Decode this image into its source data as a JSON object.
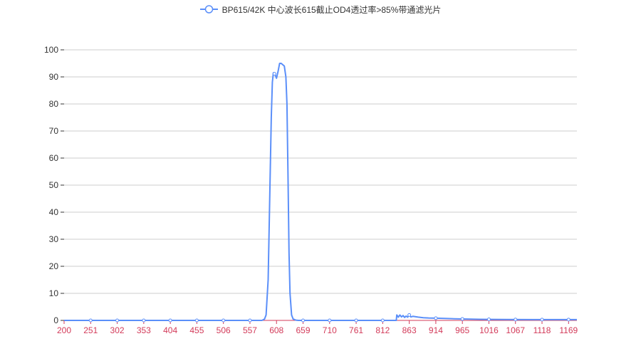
{
  "colors": {
    "series": "#5b8ff9",
    "grid": "#cccccc",
    "axis_x": "#d33b5a",
    "text": "#333333"
  },
  "chart_data": {
    "type": "line",
    "legend_position": "top-center",
    "grid": true,
    "series": [
      {
        "name": "BP615/42K 中心波长615截止OD4透过率>85%带通滤光片",
        "x": [
          200,
          400,
          560,
          580,
          585,
          588,
          592,
          595,
          598,
          600,
          602,
          605,
          608,
          611,
          614,
          617,
          620,
          623,
          626,
          628,
          630,
          632,
          634,
          637,
          640,
          645,
          650,
          700,
          800,
          838,
          839,
          842,
          845,
          848,
          851,
          854,
          857,
          860,
          863,
          866,
          870,
          880,
          890,
          900,
          920,
          950,
          1000,
          1050,
          1100,
          1150,
          1185
        ],
        "values": [
          0,
          0,
          0,
          0,
          0.5,
          2,
          15,
          45,
          75,
          88,
          91.5,
          91,
          89.5,
          92,
          95,
          95,
          94.5,
          94,
          90,
          80,
          55,
          25,
          10,
          2,
          0.5,
          0.1,
          0,
          0,
          0,
          0,
          2,
          1.2,
          2,
          1.3,
          1.8,
          1.1,
          1.6,
          1.2,
          2,
          1.3,
          1.5,
          1.2,
          1.0,
          0.9,
          0.8,
          0.6,
          0.4,
          0.35,
          0.3,
          0.3,
          0.3
        ]
      }
    ],
    "xlim": [
      200,
      1185
    ],
    "x_ticks": [
      200,
      251,
      302,
      353,
      404,
      455,
      506,
      557,
      608,
      659,
      710,
      761,
      812,
      863,
      914,
      965,
      1016,
      1067,
      1118,
      1169
    ],
    "ylim": [
      0,
      100
    ],
    "y_ticks": [
      0,
      10,
      20,
      30,
      40,
      50,
      60,
      70,
      80,
      90,
      100
    ],
    "marker_x": [
      251,
      302,
      353,
      404,
      455,
      506,
      557,
      604,
      659,
      710,
      761,
      812,
      863,
      914,
      965,
      1016,
      1067,
      1118,
      1169
    ]
  }
}
